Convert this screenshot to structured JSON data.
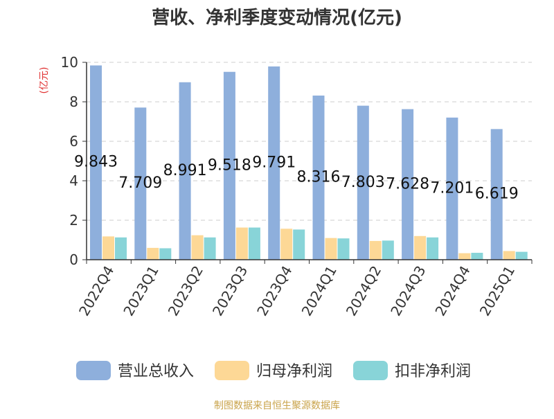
{
  "chart_data": {
    "type": "bar",
    "title": "营收、净利季度变动情况(亿元)",
    "ylabel": "(亿元)",
    "xlabel": "",
    "ylim": [
      0,
      10
    ],
    "yticks": [
      0,
      2,
      4,
      6,
      8,
      10
    ],
    "grid": true,
    "legend_position": "bottom",
    "categories": [
      "2022Q4",
      "2023Q1",
      "2023Q2",
      "2023Q3",
      "2023Q4",
      "2024Q1",
      "2024Q2",
      "2024Q3",
      "2024Q4",
      "2025Q1"
    ],
    "series": [
      {
        "name": "营业总收入",
        "color": "#8eafdc",
        "values": [
          9.843,
          7.709,
          8.991,
          9.518,
          9.791,
          8.316,
          7.803,
          7.628,
          7.201,
          6.619
        ],
        "labeled": true
      },
      {
        "name": "归母净利润",
        "color": "#fdd896",
        "values": [
          1.18,
          0.6,
          1.24,
          1.63,
          1.57,
          1.1,
          0.95,
          1.2,
          0.33,
          0.44
        ],
        "labeled": false
      },
      {
        "name": "扣非净利润",
        "color": "#88d4d8",
        "values": [
          1.13,
          0.58,
          1.13,
          1.63,
          1.53,
          1.08,
          0.97,
          1.13,
          0.35,
          0.4
        ],
        "labeled": false
      }
    ]
  },
  "source": "制图数据来自恒生聚源数据库",
  "colors": {
    "title": "#333333",
    "ylabel": "#e03030",
    "axis": "#333333",
    "grid": "#cccccc",
    "label": "#111111",
    "source": "#c9a34a"
  }
}
